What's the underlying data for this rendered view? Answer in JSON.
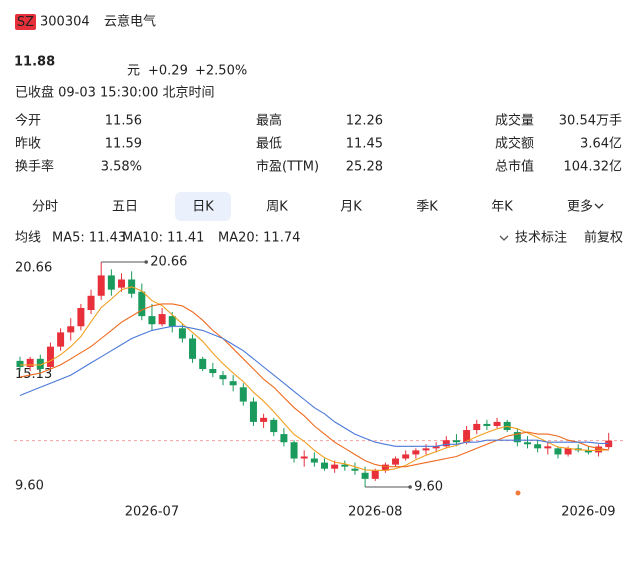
{
  "header": {
    "market": "SZ",
    "code": "300304",
    "name": "云意电气"
  },
  "quote": {
    "price": 11.88,
    "unit": "元",
    "change": "+0.29",
    "change_pct": "+2.50%",
    "status": "已收盘 09-03 15:30:00 北京时间"
  },
  "stats": [
    [
      {
        "label": "今开",
        "value": 11.56,
        "color": "#1a9a5c"
      },
      {
        "label": "最高",
        "value": 12.26,
        "color": "#e0202e"
      },
      {
        "label": "成交量",
        "value": "30.54万手",
        "color": "#222"
      }
    ],
    [
      {
        "label": "昨收",
        "value": 11.59,
        "color": "#222"
      },
      {
        "label": "最低",
        "value": 11.45,
        "color": "#1a9a5c"
      },
      {
        "label": "成交额",
        "value": "3.64亿",
        "color": "#222"
      }
    ],
    [
      {
        "label": "换手率",
        "value": "3.58%",
        "color": "#222"
      },
      {
        "label": "市盈(TTM)",
        "value": 25.28,
        "color": "#222"
      },
      {
        "label": "总市值",
        "value": "104.32亿",
        "color": "#222"
      }
    ]
  ],
  "tabs": [
    "分时",
    "五日",
    "日K",
    "周K",
    "月K",
    "季K",
    "年K",
    "更多"
  ],
  "selected_tab": 2,
  "indicator_bar": {
    "title": "均线",
    "items": [
      {
        "text": "MA5: 11.43",
        "color": "#f0a020"
      },
      {
        "text": "MA10: 11.41",
        "color": "#ee6a1e"
      },
      {
        "text": "MA20: 11.74",
        "color": "#4a79d8"
      }
    ],
    "tools": [
      "技术标注",
      "前复权"
    ]
  },
  "chart_data": {
    "type": "candlestick",
    "categories": [
      null,
      null,
      null,
      null,
      null,
      null,
      null,
      null,
      null,
      null,
      null,
      null,
      null,
      "2026-07",
      null,
      null,
      null,
      null,
      null,
      null,
      null,
      null,
      null,
      null,
      null,
      null,
      null,
      null,
      null,
      null,
      null,
      null,
      null,
      null,
      null,
      "2026-08",
      null,
      null,
      null,
      null,
      null,
      null,
      null,
      null,
      null,
      null,
      null,
      null,
      null,
      null,
      null,
      null,
      null,
      null,
      null,
      null,
      "2026-09",
      null,
      null
    ],
    "open": [
      15.8,
      15.5,
      15.9,
      15.5,
      16.5,
      17.2,
      17.5,
      18.3,
      19.0,
      20.0,
      19.4,
      19.8,
      19.2,
      18.0,
      17.6,
      18.0,
      17.4,
      16.9,
      15.9,
      15.4,
      15.1,
      14.8,
      14.5,
      13.8,
      12.8,
      12.9,
      12.2,
      11.8,
      11.0,
      11.0,
      10.8,
      10.5,
      10.7,
      10.5,
      10.3,
      10.0,
      10.4,
      10.7,
      11.0,
      11.2,
      11.4,
      11.5,
      11.6,
      11.9,
      11.8,
      12.4,
      12.7,
      12.6,
      12.8,
      12.3,
      11.8,
      11.7,
      11.5,
      11.5,
      11.2,
      11.5,
      11.4,
      11.3,
      11.56
    ],
    "high": [
      16.0,
      16.0,
      16.1,
      16.7,
      17.4,
      17.9,
      18.6,
      19.3,
      20.66,
      20.3,
      20.1,
      20.2,
      19.6,
      18.6,
      18.4,
      18.2,
      17.6,
      17.1,
      16.0,
      15.7,
      15.3,
      15.1,
      14.7,
      14.0,
      13.2,
      13.0,
      12.5,
      11.9,
      11.4,
      11.3,
      11.0,
      10.9,
      10.9,
      10.8,
      10.6,
      10.5,
      10.8,
      11.1,
      11.4,
      11.5,
      11.7,
      11.8,
      12.1,
      12.2,
      12.6,
      12.9,
      12.9,
      13.0,
      12.9,
      12.5,
      12.1,
      11.9,
      11.8,
      11.6,
      11.6,
      11.7,
      11.6,
      11.7,
      12.26
    ],
    "low": [
      15.3,
      15.3,
      15.2,
      15.4,
      16.3,
      16.8,
      17.3,
      18.1,
      18.8,
      19.0,
      19.2,
      18.9,
      17.8,
      17.3,
      17.5,
      17.2,
      16.7,
      15.7,
      15.3,
      15.0,
      14.6,
      14.3,
      13.6,
      12.6,
      12.5,
      12.1,
      11.6,
      10.8,
      10.6,
      10.6,
      10.4,
      10.3,
      10.4,
      10.2,
      9.6,
      9.9,
      10.3,
      10.6,
      10.9,
      11.0,
      11.2,
      11.3,
      11.5,
      11.6,
      11.7,
      12.2,
      12.4,
      12.5,
      12.3,
      11.6,
      11.5,
      11.3,
      11.2,
      11.0,
      11.1,
      11.3,
      11.2,
      11.1,
      11.45
    ],
    "close": [
      15.5,
      15.9,
      15.4,
      16.5,
      17.2,
      17.5,
      18.4,
      19.0,
      20.0,
      19.3,
      19.8,
      19.1,
      18.0,
      17.6,
      18.1,
      17.5,
      16.9,
      15.9,
      15.4,
      15.2,
      14.9,
      14.6,
      13.8,
      12.8,
      13.0,
      12.3,
      11.8,
      11.0,
      11.1,
      10.8,
      10.5,
      10.7,
      10.6,
      10.4,
      10.0,
      10.4,
      10.7,
      11.0,
      11.2,
      11.4,
      11.5,
      11.6,
      11.9,
      11.8,
      12.4,
      12.7,
      12.6,
      12.8,
      12.4,
      11.8,
      11.7,
      11.5,
      11.6,
      11.2,
      11.5,
      11.4,
      11.3,
      11.59,
      11.88
    ],
    "up_color": "#e8303a",
    "down_color": "#1a9a5c",
    "series": [
      {
        "color": "#f0a020",
        "values": [
          15.6,
          15.6,
          15.6,
          15.8,
          16.1,
          16.5,
          17.0,
          17.72,
          18.42,
          18.84,
          19.3,
          19.44,
          19.24,
          18.76,
          18.52,
          18.06,
          17.62,
          17.2,
          16.76,
          16.18,
          15.66,
          15.2,
          14.78,
          14.26,
          13.82,
          13.3,
          12.74,
          12.18,
          11.84,
          11.4,
          11.04,
          10.82,
          10.74,
          10.6,
          10.44,
          10.42,
          10.42,
          10.5,
          10.66,
          10.94,
          11.16,
          11.34,
          11.52,
          11.64,
          11.84,
          12.08,
          12.28,
          12.46,
          12.58,
          12.46,
          12.26,
          12.04,
          11.8,
          11.56,
          11.5,
          11.44,
          11.4,
          11.4,
          11.43
        ]
      },
      {
        "color": "#ee6a1e",
        "values": [
          15.0,
          15.1,
          15.2,
          15.4,
          15.6,
          15.9,
          16.2,
          16.5,
          16.9,
          17.3,
          17.7,
          18.0,
          18.3,
          18.5,
          18.6,
          18.6,
          18.5,
          18.2,
          17.8,
          17.3,
          16.9,
          16.4,
          15.9,
          15.4,
          14.9,
          14.5,
          14.0,
          13.5,
          13.1,
          12.6,
          12.2,
          11.8,
          11.5,
          11.2,
          10.9,
          10.7,
          10.6,
          10.6,
          10.6,
          10.7,
          10.8,
          10.9,
          11.0,
          11.1,
          11.3,
          11.5,
          11.7,
          11.9,
          12.1,
          12.2,
          12.3,
          12.2,
          12.2,
          12.1,
          11.9,
          11.8,
          11.6,
          11.5,
          11.41
        ]
      },
      {
        "color": "#4a79d8",
        "values": [
          14.1,
          14.3,
          14.5,
          14.7,
          14.9,
          15.1,
          15.4,
          15.7,
          16.0,
          16.3,
          16.6,
          16.9,
          17.1,
          17.3,
          17.4,
          17.5,
          17.5,
          17.4,
          17.3,
          17.1,
          16.9,
          16.6,
          16.3,
          15.9,
          15.5,
          15.1,
          14.7,
          14.3,
          13.9,
          13.5,
          13.2,
          12.8,
          12.5,
          12.2,
          12.0,
          11.8,
          11.7,
          11.6,
          11.6,
          11.6,
          11.6,
          11.6,
          11.7,
          11.7,
          11.8,
          11.8,
          11.9,
          11.9,
          11.9,
          11.9,
          11.9,
          11.9,
          11.8,
          11.8,
          11.8,
          11.8,
          11.8,
          11.75,
          11.74
        ]
      }
    ],
    "ylim": [
      9.6,
      20.66
    ],
    "yticks": [
      {
        "value": 20.66,
        "label": "20.66"
      },
      {
        "value": 15.13,
        "label": "15.13"
      },
      {
        "value": 9.6,
        "label": "9.60"
      }
    ],
    "reference_line": 11.88,
    "annotations": [
      {
        "index": 8,
        "value": 20.66,
        "label": "20.66"
      },
      {
        "index": 34,
        "value": 9.6,
        "label": "9.60"
      }
    ]
  }
}
